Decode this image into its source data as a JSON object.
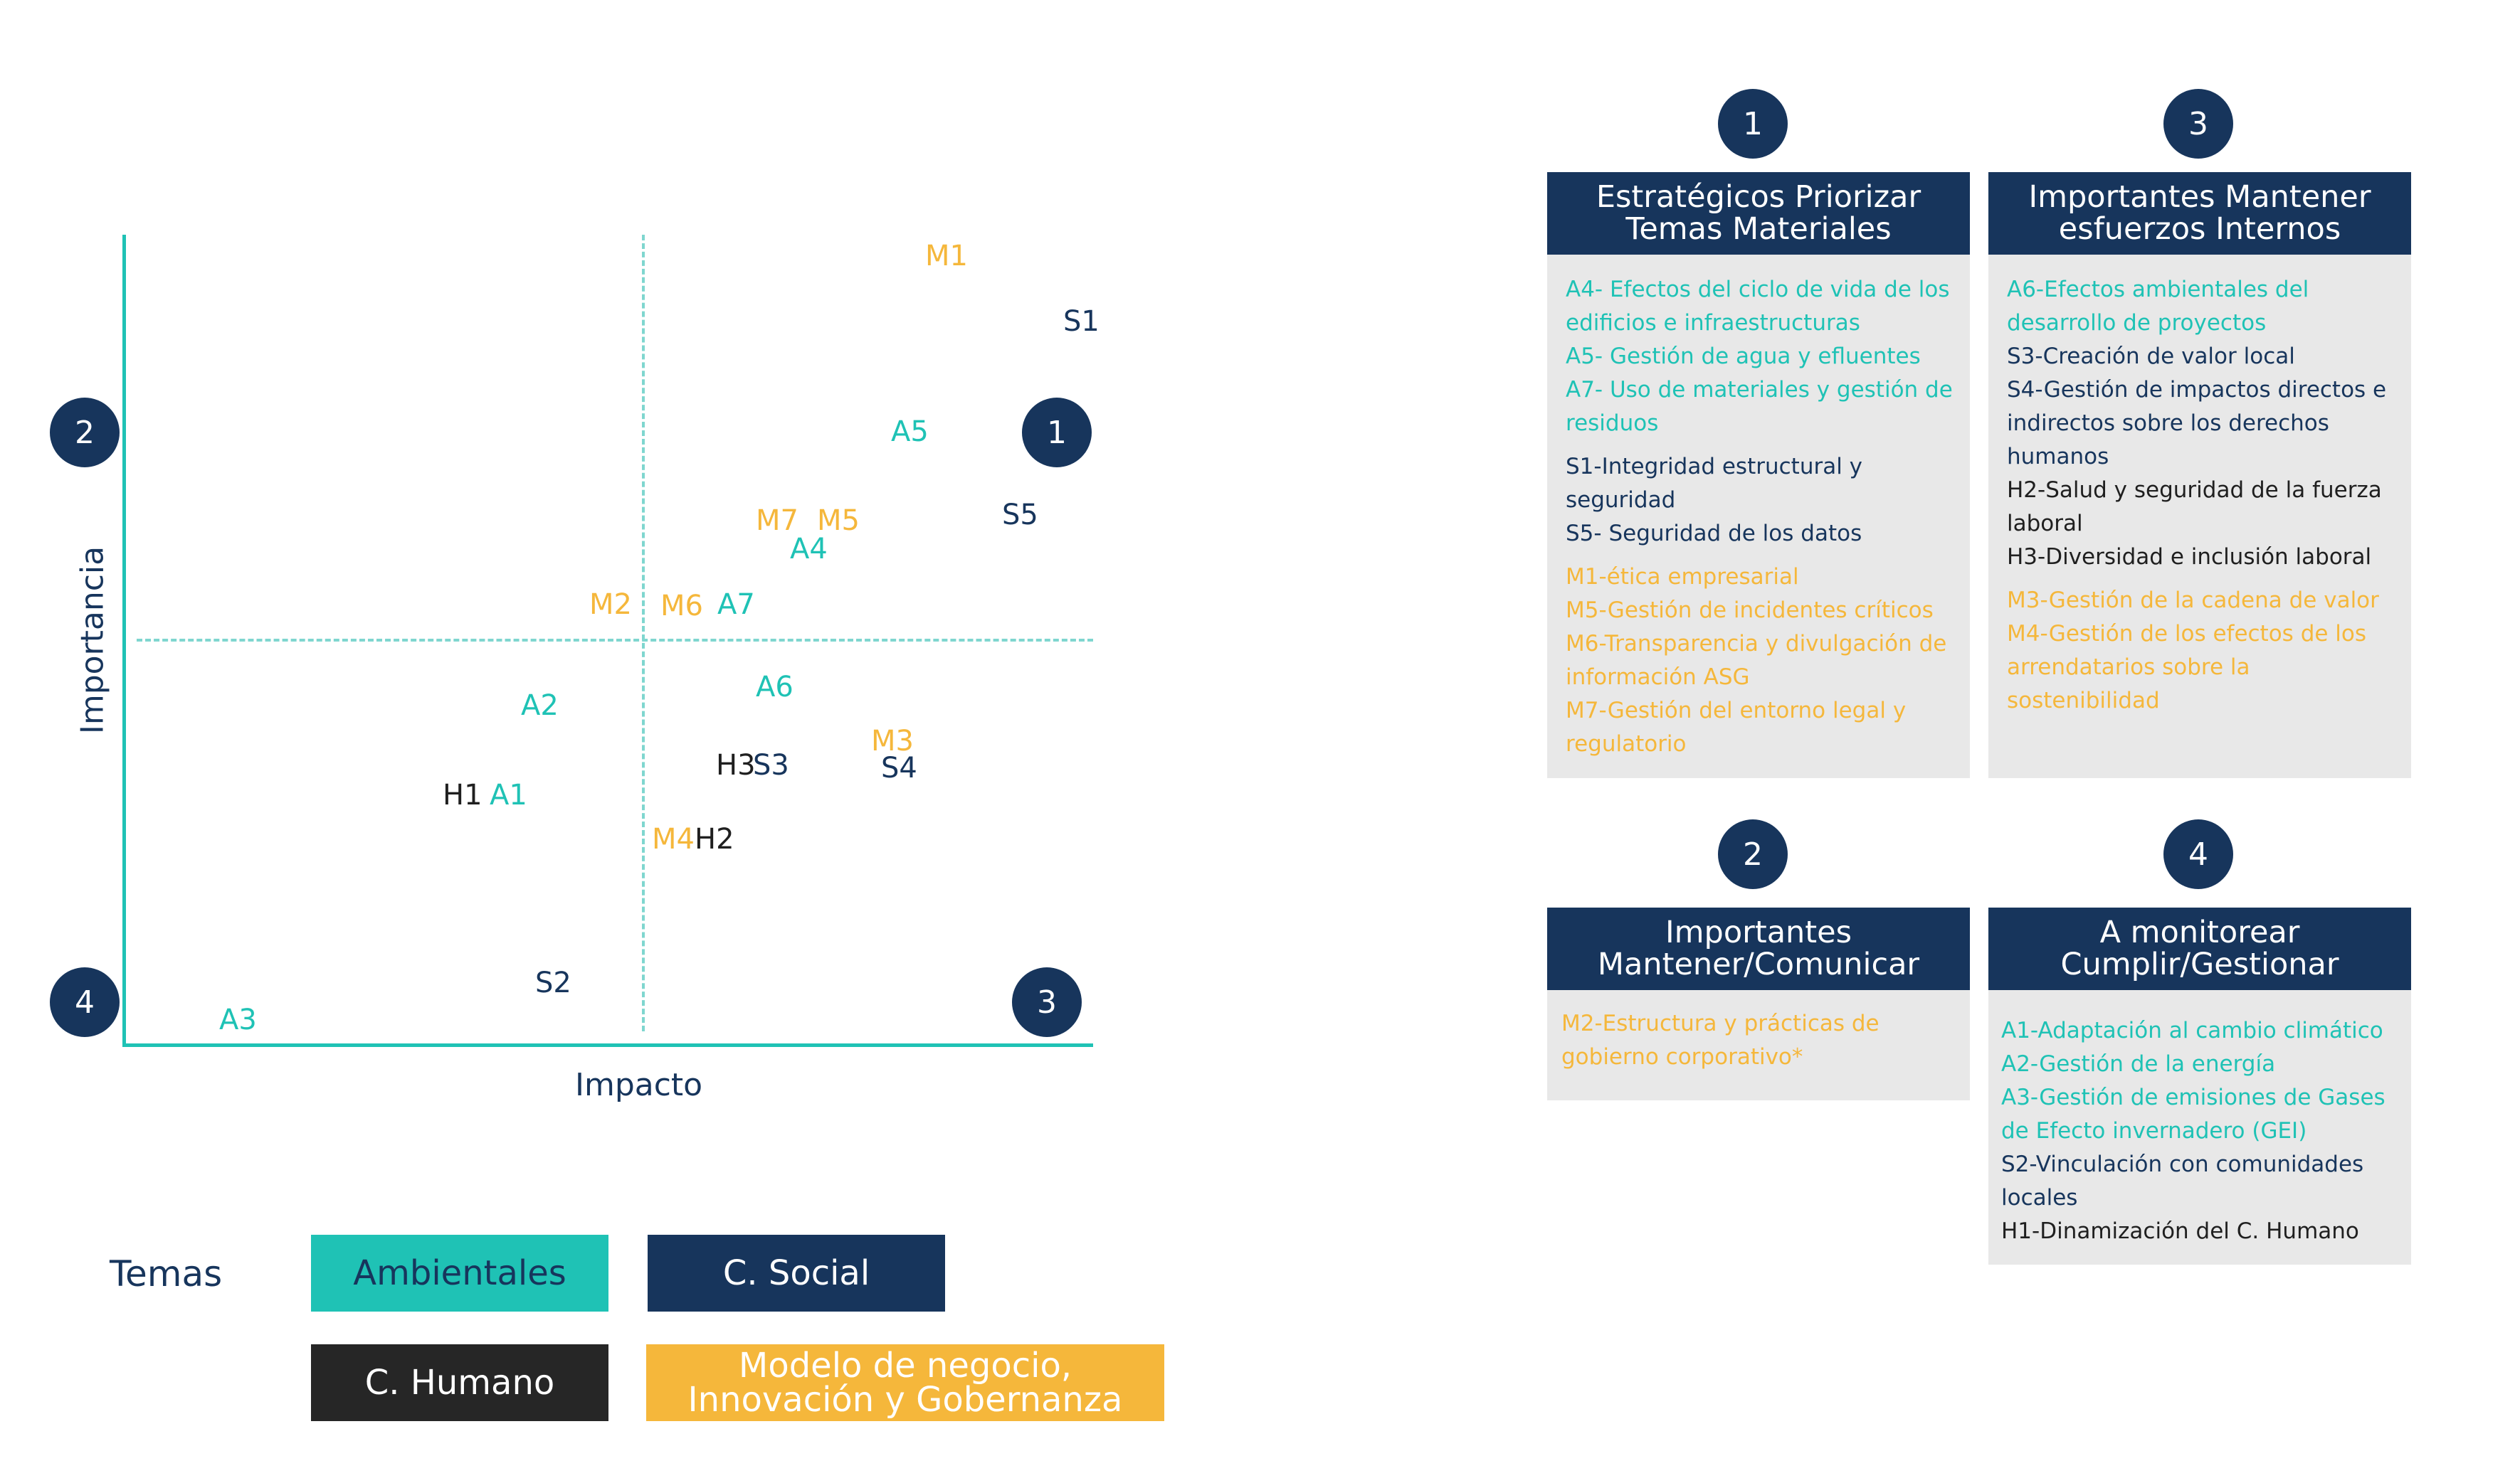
{
  "matrix": {
    "y_axis_label": "Importancia",
    "x_axis_label": "Impacto",
    "quadrant_markers": {
      "q1": "1",
      "q2": "2",
      "q3": "3",
      "q4": "4"
    },
    "colors": {
      "Ambientales": "#1fc2b5",
      "C. Social": "#17355c",
      "C. Humano": "#1f1f1f",
      "Modelo de negocio": "#f5b73b"
    },
    "points": [
      {
        "label": "M1",
        "group": "Modelo de negocio"
      },
      {
        "label": "S1",
        "group": "C. Social"
      },
      {
        "label": "A5",
        "group": "Ambientales"
      },
      {
        "label": "S5",
        "group": "C. Social"
      },
      {
        "label": "M7",
        "group": "Modelo de negocio"
      },
      {
        "label": "M5",
        "group": "Modelo de negocio"
      },
      {
        "label": "A4",
        "group": "Ambientales"
      },
      {
        "label": "M2",
        "group": "Modelo de negocio"
      },
      {
        "label": "M6",
        "group": "Modelo de negocio"
      },
      {
        "label": "A7",
        "group": "Ambientales"
      },
      {
        "label": "A6",
        "group": "Ambientales"
      },
      {
        "label": "A2",
        "group": "Ambientales"
      },
      {
        "label": "M3",
        "group": "Modelo de negocio"
      },
      {
        "label": "H3",
        "group": "C. Humano"
      },
      {
        "label": "S3",
        "group": "C. Social"
      },
      {
        "label": "S4",
        "group": "C. Social"
      },
      {
        "label": "H1",
        "group": "C. Humano"
      },
      {
        "label": "A1",
        "group": "Ambientales"
      },
      {
        "label": "M4",
        "group": "Modelo de negocio"
      },
      {
        "label": "H2",
        "group": "C. Humano"
      },
      {
        "label": "S2",
        "group": "C. Social"
      },
      {
        "label": "A3",
        "group": "Ambientales"
      }
    ]
  },
  "legend": {
    "title": "Temas",
    "items": [
      "Ambientales",
      "C. Social",
      "C. Humano",
      "Modelo de negocio, Innovación y Gobernanza"
    ]
  },
  "cards": [
    {
      "number": "1",
      "title": "Estratégicos Priorizar Temas Materiales",
      "groups": [
        {
          "color": "Ambientales",
          "items": [
            "A4- Efectos del ciclo de vida de los edificios e infraestructuras",
            "A5- Gestión de agua y efluentes",
            "A7- Uso de materiales y gestión de residuos"
          ]
        },
        {
          "color": "C. Social",
          "items": [
            "S1-Integridad estructural y seguridad",
            "S5- Seguridad de los datos"
          ]
        },
        {
          "color": "Modelo de negocio",
          "items": [
            "M1-ética empresarial",
            "M5-Gestión de incidentes críticos",
            "M6-Transparencia y divulgación de información ASG",
            "M7-Gestión del entorno legal y regulatorio"
          ]
        }
      ]
    },
    {
      "number": "3",
      "title": "Importantes Mantener esfuerzos Internos",
      "groups": [
        {
          "color": "Ambientales",
          "items": [
            "A6-Efectos ambientales del desarrollo de proyectos"
          ]
        },
        {
          "color": "C. Social",
          "items": [
            "S3-Creación de valor local",
            "S4-Gestión de impactos directos e indirectos sobre los derechos humanos"
          ]
        },
        {
          "color": "C. Humano",
          "items": [
            "H2-Salud y seguridad de la fuerza laboral",
            "H3-Diversidad e inclusión laboral"
          ]
        },
        {
          "color": "Modelo de negocio",
          "items": [
            "M3-Gestión de la cadena de valor",
            "M4-Gestión de los efectos de los arrendatarios sobre la sostenibilidad"
          ]
        }
      ]
    },
    {
      "number": "2",
      "title": "Importantes Mantener/Comunicar",
      "groups": [
        {
          "color": "Modelo de negocio",
          "items": [
            "M2-Estructura y prácticas de gobierno corporativo*"
          ]
        }
      ]
    },
    {
      "number": "4",
      "title": "A monitorear Cumplir/Gestionar",
      "groups": [
        {
          "color": "Ambientales",
          "items": [
            "A1-Adaptación al cambio climático",
            "A2-Gestión de la energía",
            "A3-Gestión de emisiones de Gases de Efecto invernadero (GEI)"
          ]
        },
        {
          "color": "C. Social",
          "items": [
            "S2-Vinculación con comunidades locales"
          ]
        },
        {
          "color": "C. Humano",
          "items": [
            "H1-Dinamización del C. Humano"
          ]
        }
      ]
    }
  ]
}
